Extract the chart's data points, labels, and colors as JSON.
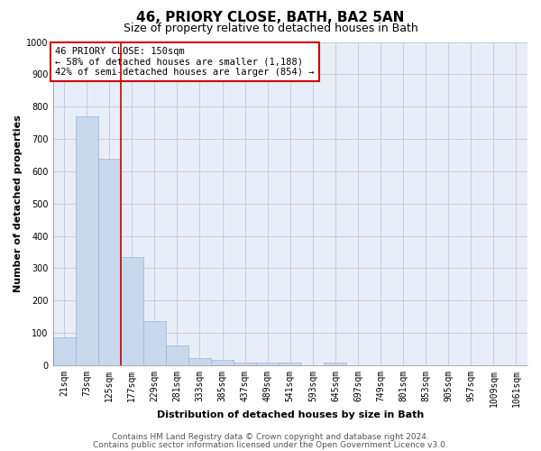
{
  "title": "46, PRIORY CLOSE, BATH, BA2 5AN",
  "subtitle": "Size of property relative to detached houses in Bath",
  "xlabel": "Distribution of detached houses by size in Bath",
  "ylabel": "Number of detached properties",
  "bar_labels": [
    "21sqm",
    "73sqm",
    "125sqm",
    "177sqm",
    "229sqm",
    "281sqm",
    "333sqm",
    "385sqm",
    "437sqm",
    "489sqm",
    "541sqm",
    "593sqm",
    "645sqm",
    "697sqm",
    "749sqm",
    "801sqm",
    "853sqm",
    "905sqm",
    "957sqm",
    "1009sqm",
    "1061sqm"
  ],
  "bar_values": [
    85,
    770,
    640,
    335,
    135,
    60,
    22,
    15,
    8,
    8,
    8,
    0,
    8,
    0,
    0,
    0,
    0,
    0,
    0,
    0,
    0
  ],
  "bar_color": "#c8d8ed",
  "bar_edgecolor": "#9ab5d8",
  "vline_color": "#cc0000",
  "ylim": [
    0,
    1000
  ],
  "yticks": [
    0,
    100,
    200,
    300,
    400,
    500,
    600,
    700,
    800,
    900,
    1000
  ],
  "annotation_box_text": "46 PRIORY CLOSE: 150sqm\n← 58% of detached houses are smaller (1,188)\n42% of semi-detached houses are larger (854) →",
  "annotation_box_color": "#cc0000",
  "footer_line1": "Contains HM Land Registry data © Crown copyright and database right 2024.",
  "footer_line2": "Contains public sector information licensed under the Open Government Licence v3.0.",
  "plot_bg_color": "#e8eef8",
  "fig_bg_color": "#ffffff",
  "grid_color": "#c5cfe0",
  "title_fontsize": 11,
  "subtitle_fontsize": 9,
  "label_fontsize": 8,
  "tick_fontsize": 7,
  "footer_fontsize": 6.5,
  "annot_fontsize": 7.5
}
